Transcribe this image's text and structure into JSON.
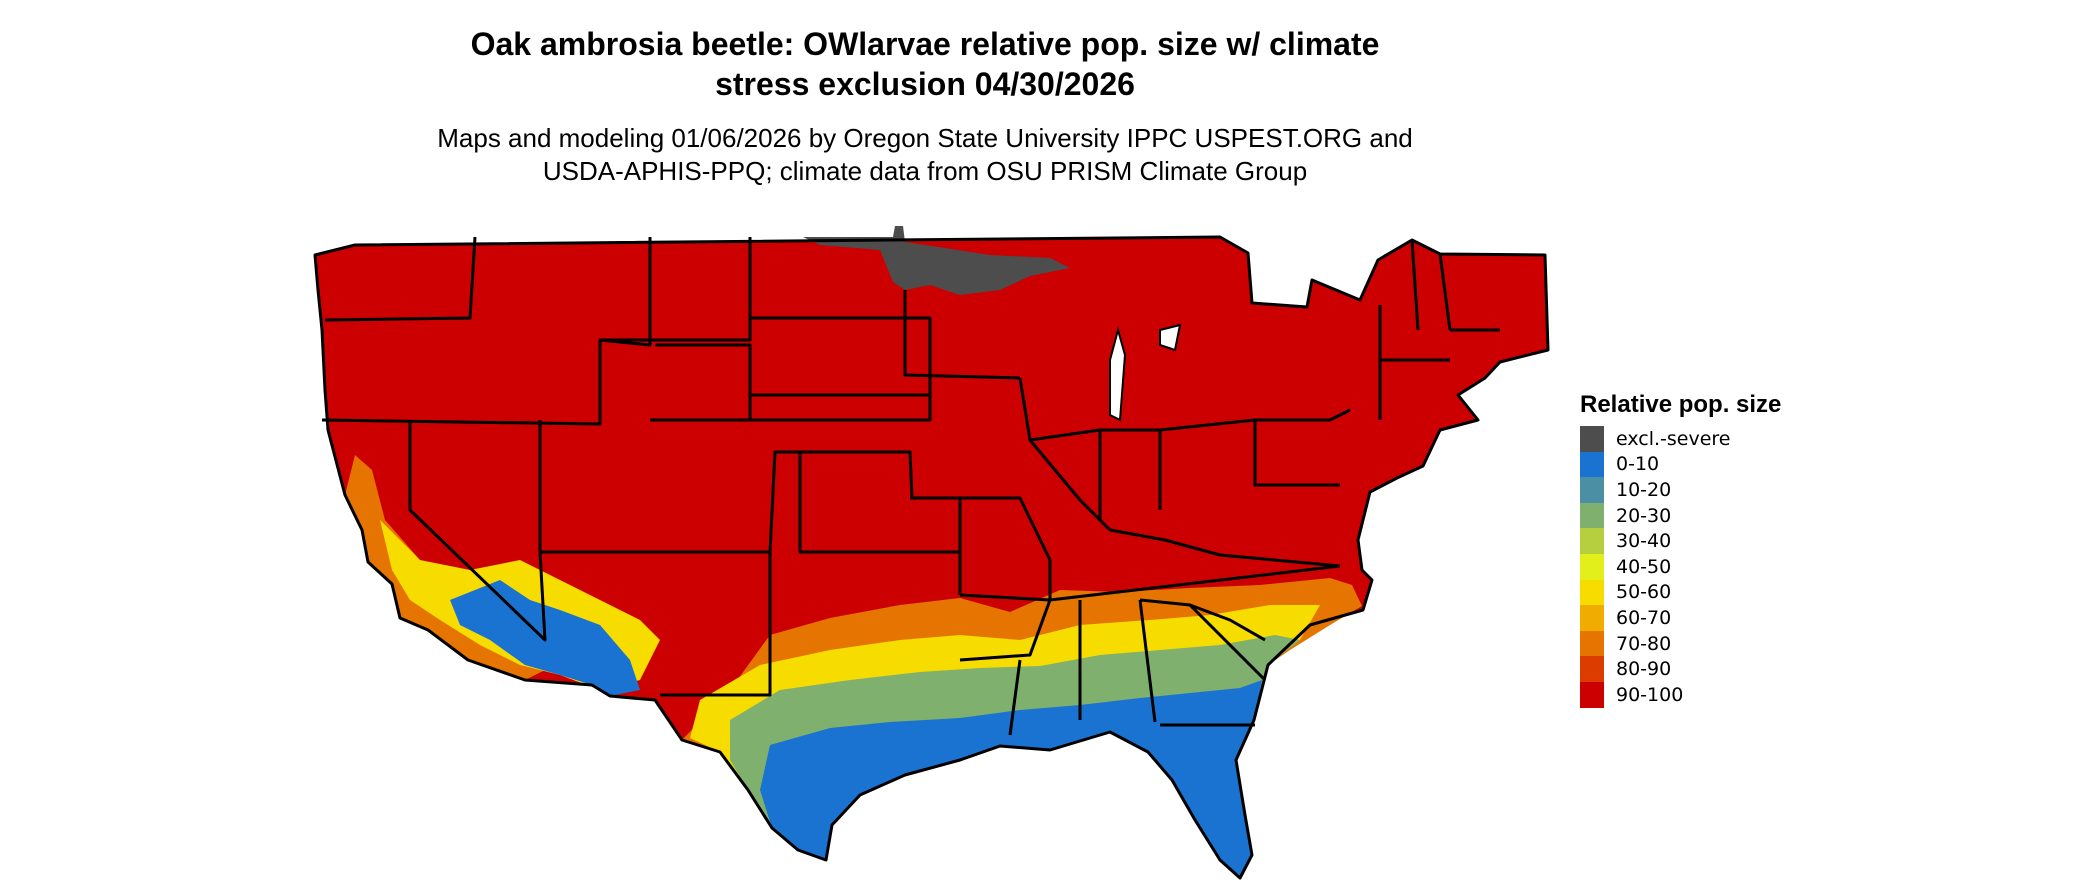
{
  "title_line1": "Oak ambrosia beetle: OWlarvae relative pop. size w/ climate",
  "title_line2": "stress exclusion 04/30/2026",
  "subtitle_line1": "Maps and modeling 01/06/2026 by Oregon State University IPPC USPEST.ORG and",
  "subtitle_line2": "USDA-APHIS-PPQ; climate data from OSU PRISM Climate Group",
  "legend": {
    "title": "Relative pop. size",
    "items": [
      {
        "label": "excl.-severe",
        "color": "#4d4d4d"
      },
      {
        "label": "0-10",
        "color": "#1a73d1"
      },
      {
        "label": "10-20",
        "color": "#4a8fa3"
      },
      {
        "label": "20-30",
        "color": "#80b06e"
      },
      {
        "label": "30-40",
        "color": "#b5cf3e"
      },
      {
        "label": "40-50",
        "color": "#e3ef1a"
      },
      {
        "label": "50-60",
        "color": "#f7dc00"
      },
      {
        "label": "60-70",
        "color": "#f0ad00"
      },
      {
        "label": "70-80",
        "color": "#e57400"
      },
      {
        "label": "80-90",
        "color": "#dc3c00"
      },
      {
        "label": "90-100",
        "color": "#cc0000"
      }
    ]
  }
}
